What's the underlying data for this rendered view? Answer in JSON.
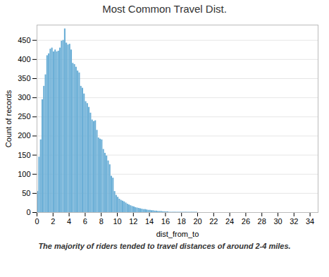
{
  "chart_data": {
    "type": "histogram",
    "title": "Most Common Travel Dist.",
    "xlabel": "dist_from_to",
    "ylabel": "Count of records",
    "caption": "The majority of riders tended to travel distances of around 2-4 miles.",
    "color": "#6aaed6",
    "bins": [
      0,
      0.2,
      0.4,
      0.6,
      0.8,
      1,
      1.2,
      1.4,
      1.6,
      1.8,
      2,
      2.2,
      2.4,
      2.6,
      2.8,
      3,
      3.2,
      3.4,
      3.6,
      3.8,
      4,
      4.2,
      4.4,
      4.6,
      4.8,
      5,
      5.2,
      5.4,
      5.6,
      5.8,
      6,
      6.2,
      6.4,
      6.6,
      6.8,
      7,
      7.2,
      7.4,
      7.6,
      7.8,
      8,
      8.2,
      8.4,
      8.6,
      8.8,
      9,
      9.2,
      9.4,
      9.6,
      9.8,
      10,
      10.2,
      10.4,
      10.6,
      10.8,
      11,
      11.2,
      11.4,
      11.6,
      11.8,
      12,
      12.2,
      12.4,
      12.6,
      12.8,
      13,
      13.2,
      13.4,
      13.6,
      13.8,
      14,
      14.2,
      14.4,
      14.6,
      14.8,
      15,
      15.2,
      15.4,
      15.6,
      15.8,
      16,
      16.2,
      16.4,
      16.6,
      16.8,
      17,
      17.2,
      17.4,
      17.6,
      17.8,
      18,
      18.2,
      18.4,
      18.6,
      18.8,
      19,
      19.2,
      19.4,
      19.6,
      19.8,
      20,
      20.2,
      20.4,
      20.6,
      20.8,
      21,
      21.2,
      21.4,
      21.6,
      21.8,
      22,
      22.2,
      22.4,
      22.6,
      22.8,
      23,
      23.2,
      23.4,
      23.6,
      23.8,
      24,
      24.2,
      24.4,
      24.6,
      24.8,
      25,
      25.2,
      25.4,
      25.6,
      25.8,
      26,
      26.2,
      26.4,
      26.6,
      26.8,
      27,
      27.2,
      27.4,
      27.6,
      27.8,
      28,
      28.2,
      28.4,
      28.6,
      28.8,
      29,
      29.2,
      29.4,
      29.6,
      29.8,
      30,
      30.2,
      30.4,
      30.6,
      30.8,
      31,
      31.2,
      31.4,
      31.6,
      31.8,
      32,
      32.2,
      32.4,
      32.6,
      32.8,
      33,
      33.2,
      33.4,
      33.6,
      33.8,
      34,
      34.2,
      34.4,
      34.6,
      34.8,
      35
    ],
    "values": [
      55,
      145,
      190,
      295,
      330,
      360,
      410,
      415,
      427,
      430,
      420,
      425,
      420,
      422,
      430,
      448,
      450,
      480,
      443,
      438,
      440,
      425,
      390,
      387,
      380,
      370,
      365,
      330,
      325,
      310,
      290,
      285,
      275,
      260,
      242,
      238,
      240,
      215,
      195,
      192,
      190,
      165,
      155,
      148,
      135,
      125,
      95,
      90,
      55,
      45,
      40,
      35,
      32,
      30,
      28,
      25,
      22,
      20,
      18,
      16,
      15,
      13,
      12,
      11,
      10,
      9,
      8,
      8,
      7,
      6,
      6,
      5,
      5,
      4,
      4,
      3,
      3,
      3,
      2,
      2,
      2,
      2,
      1,
      1,
      1,
      1,
      1,
      1,
      1,
      1,
      1,
      1,
      1,
      1,
      1,
      1,
      1,
      1,
      1,
      1,
      0,
      0,
      0,
      0,
      0,
      0,
      0,
      0,
      0,
      0,
      0,
      0,
      0,
      0,
      0,
      0,
      0,
      0,
      0,
      0,
      0,
      0,
      0,
      0,
      0,
      0,
      0,
      0,
      0,
      0,
      0,
      0,
      0,
      0,
      0,
      0,
      0,
      0,
      0,
      0,
      0,
      0,
      0,
      0,
      0,
      0,
      0,
      0,
      0,
      0,
      0,
      0,
      0,
      0,
      0,
      0,
      0,
      0,
      0,
      0,
      0,
      0,
      0,
      0,
      0,
      0,
      0,
      0,
      0,
      0,
      0,
      0,
      0,
      0,
      0
    ],
    "xlim": [
      0,
      35
    ],
    "xticks": [
      0,
      2,
      4,
      6,
      8,
      10,
      12,
      14,
      16,
      18,
      20,
      22,
      24,
      26,
      28,
      30,
      32,
      34
    ],
    "ylim": [
      0,
      490
    ],
    "yticks": [
      0,
      50,
      100,
      150,
      200,
      250,
      300,
      350,
      400,
      450
    ],
    "grid": true
  }
}
